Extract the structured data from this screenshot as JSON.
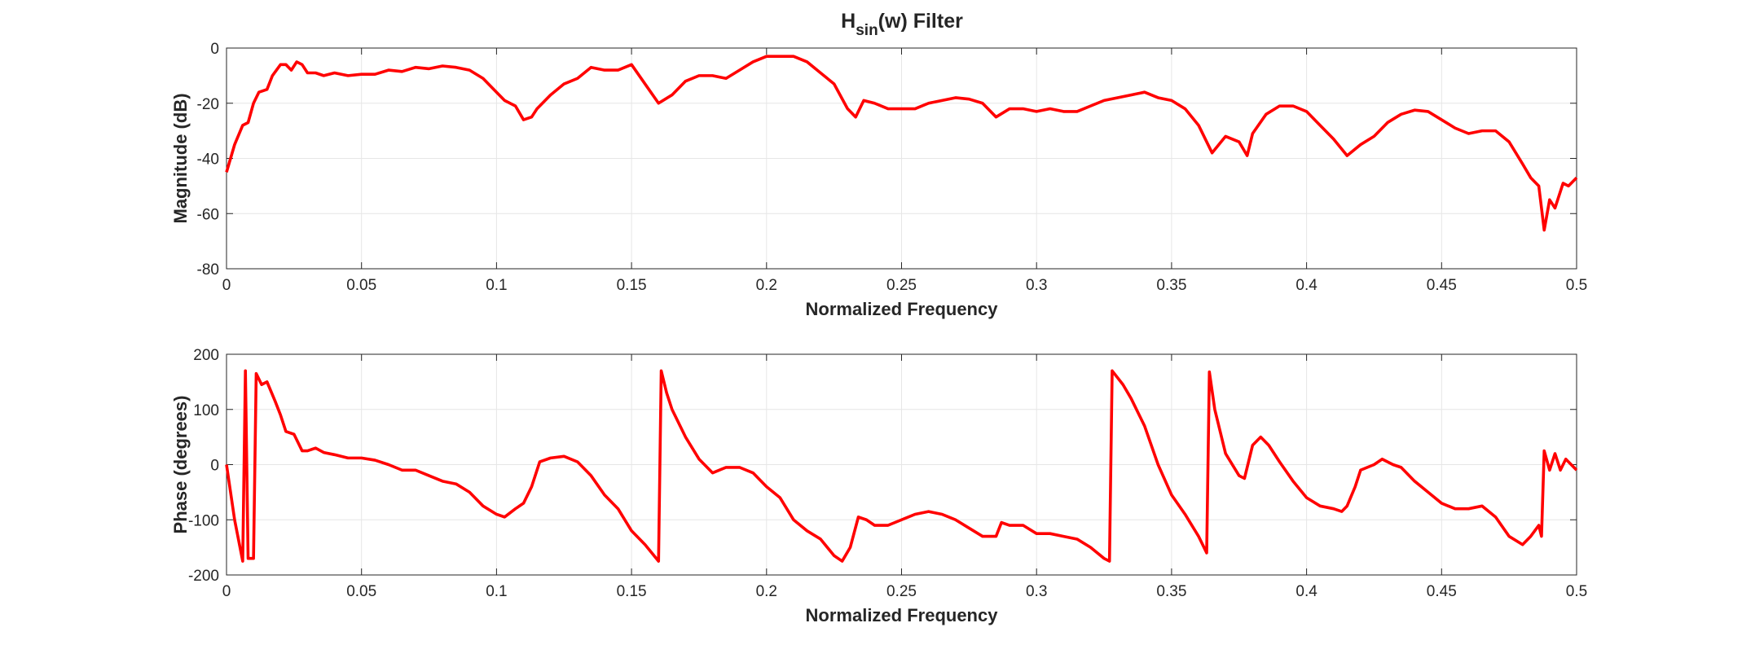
{
  "chart_data": [
    {
      "type": "line",
      "title": [
        "H",
        "sin",
        "(w) Filter"
      ],
      "xlabel": "Normalized Frequency",
      "ylabel": "Magnitude (dB)",
      "xlim": [
        0,
        0.5
      ],
      "xticks": [
        0,
        0.05,
        0.1,
        0.15,
        0.2,
        0.25,
        0.3,
        0.35,
        0.4,
        0.45,
        0.5
      ],
      "ylim": [
        -80,
        0
      ],
      "yticks": [
        -80,
        -60,
        -40,
        -20,
        0
      ],
      "grid": true,
      "color": "#ff0000",
      "x": [
        0,
        0.003,
        0.006,
        0.008,
        0.01,
        0.012,
        0.015,
        0.017,
        0.02,
        0.022,
        0.024,
        0.026,
        0.028,
        0.03,
        0.033,
        0.036,
        0.04,
        0.045,
        0.05,
        0.055,
        0.06,
        0.065,
        0.07,
        0.075,
        0.08,
        0.085,
        0.09,
        0.095,
        0.1,
        0.103,
        0.107,
        0.11,
        0.113,
        0.115,
        0.12,
        0.125,
        0.13,
        0.135,
        0.14,
        0.145,
        0.15,
        0.155,
        0.16,
        0.165,
        0.17,
        0.175,
        0.18,
        0.185,
        0.19,
        0.195,
        0.2,
        0.205,
        0.21,
        0.215,
        0.22,
        0.225,
        0.23,
        0.233,
        0.236,
        0.24,
        0.245,
        0.25,
        0.255,
        0.26,
        0.265,
        0.27,
        0.275,
        0.28,
        0.285,
        0.29,
        0.295,
        0.3,
        0.305,
        0.31,
        0.315,
        0.32,
        0.325,
        0.33,
        0.335,
        0.34,
        0.345,
        0.35,
        0.355,
        0.36,
        0.365,
        0.37,
        0.375,
        0.378,
        0.38,
        0.385,
        0.39,
        0.395,
        0.4,
        0.405,
        0.41,
        0.415,
        0.42,
        0.425,
        0.43,
        0.435,
        0.44,
        0.445,
        0.45,
        0.455,
        0.46,
        0.465,
        0.47,
        0.475,
        0.48,
        0.483,
        0.486,
        0.488,
        0.49,
        0.492,
        0.495,
        0.497,
        0.5
      ],
      "values": [
        -45,
        -35,
        -28,
        -27,
        -20,
        -16,
        -15,
        -10,
        -6,
        -6,
        -8,
        -5,
        -6,
        -9,
        -9,
        -10,
        -9,
        -10,
        -9.5,
        -9.5,
        -8,
        -8.5,
        -7,
        -7.5,
        -6.5,
        -7,
        -8,
        -11,
        -16,
        -19,
        -21,
        -26,
        -25,
        -22,
        -17,
        -13,
        -11,
        -7,
        -8,
        -8,
        -6,
        -13,
        -20,
        -17,
        -12,
        -10,
        -10,
        -11,
        -8,
        -5,
        -3,
        -3,
        -3,
        -5,
        -9,
        -13,
        -22,
        -25,
        -19,
        -20,
        -22,
        -22,
        -22,
        -20,
        -19,
        -18,
        -18.5,
        -20,
        -25,
        -22,
        -22,
        -23,
        -22,
        -23,
        -23,
        -21,
        -19,
        -18,
        -17,
        -16,
        -18,
        -19,
        -22,
        -28,
        -38,
        -32,
        -34,
        -39,
        -31,
        -24,
        -21,
        -21,
        -23,
        -28,
        -33,
        -39,
        -35,
        -32,
        -27,
        -24,
        -22.5,
        -23,
        -26,
        -29,
        -31,
        -30,
        -30,
        -34,
        -42,
        -47,
        -50,
        -66,
        -55,
        -58,
        -49,
        -50,
        -47
      ]
    },
    {
      "type": "line",
      "xlabel": "Normalized Frequency",
      "ylabel": "Phase (degrees)",
      "xlim": [
        0,
        0.5
      ],
      "xticks": [
        0,
        0.05,
        0.1,
        0.15,
        0.2,
        0.25,
        0.3,
        0.35,
        0.4,
        0.45,
        0.5
      ],
      "ylim": [
        -200,
        200
      ],
      "yticks": [
        -200,
        -100,
        0,
        100,
        200
      ],
      "grid": true,
      "color": "#ff0000",
      "x": [
        0,
        0.003,
        0.006,
        0.007,
        0.008,
        0.01,
        0.011,
        0.013,
        0.015,
        0.018,
        0.02,
        0.022,
        0.025,
        0.028,
        0.03,
        0.033,
        0.036,
        0.04,
        0.045,
        0.05,
        0.055,
        0.06,
        0.065,
        0.07,
        0.075,
        0.08,
        0.085,
        0.09,
        0.095,
        0.1,
        0.103,
        0.107,
        0.11,
        0.113,
        0.116,
        0.12,
        0.125,
        0.13,
        0.135,
        0.14,
        0.145,
        0.15,
        0.155,
        0.16,
        0.161,
        0.163,
        0.165,
        0.17,
        0.175,
        0.18,
        0.185,
        0.19,
        0.195,
        0.2,
        0.205,
        0.21,
        0.215,
        0.22,
        0.225,
        0.228,
        0.231,
        0.234,
        0.237,
        0.24,
        0.245,
        0.25,
        0.255,
        0.26,
        0.265,
        0.27,
        0.275,
        0.28,
        0.285,
        0.287,
        0.29,
        0.295,
        0.3,
        0.305,
        0.31,
        0.315,
        0.32,
        0.325,
        0.327,
        0.328,
        0.332,
        0.335,
        0.34,
        0.345,
        0.35,
        0.355,
        0.36,
        0.363,
        0.364,
        0.366,
        0.37,
        0.375,
        0.377,
        0.38,
        0.383,
        0.386,
        0.39,
        0.395,
        0.4,
        0.405,
        0.41,
        0.413,
        0.415,
        0.418,
        0.42,
        0.425,
        0.428,
        0.432,
        0.435,
        0.44,
        0.445,
        0.45,
        0.455,
        0.46,
        0.465,
        0.47,
        0.475,
        0.48,
        0.483,
        0.486,
        0.487,
        0.488,
        0.49,
        0.492,
        0.494,
        0.496,
        0.5
      ],
      "values": [
        0,
        -100,
        -175,
        170,
        -170,
        -170,
        165,
        145,
        150,
        115,
        90,
        60,
        55,
        25,
        25,
        30,
        22,
        18,
        12,
        12,
        8,
        0,
        -10,
        -10,
        -20,
        -30,
        -35,
        -50,
        -75,
        -90,
        -95,
        -80,
        -70,
        -40,
        5,
        12,
        15,
        5,
        -20,
        -55,
        -80,
        -120,
        -145,
        -175,
        170,
        130,
        100,
        50,
        10,
        -15,
        -5,
        -5,
        -15,
        -40,
        -60,
        -100,
        -120,
        -135,
        -165,
        -175,
        -150,
        -95,
        -100,
        -110,
        -110,
        -100,
        -90,
        -85,
        -90,
        -100,
        -115,
        -130,
        -130,
        -105,
        -110,
        -110,
        -125,
        -125,
        -130,
        -135,
        -150,
        -170,
        -175,
        170,
        145,
        120,
        70,
        0,
        -55,
        -90,
        -130,
        -160,
        168,
        100,
        20,
        -20,
        -25,
        35,
        50,
        35,
        5,
        -30,
        -60,
        -75,
        -80,
        -85,
        -75,
        -40,
        -10,
        0,
        10,
        0,
        -5,
        -30,
        -50,
        -70,
        -80,
        -80,
        -75,
        -95,
        -130,
        -145,
        -130,
        -110,
        -130,
        25,
        -10,
        20,
        -10,
        10,
        -10
      ]
    }
  ]
}
